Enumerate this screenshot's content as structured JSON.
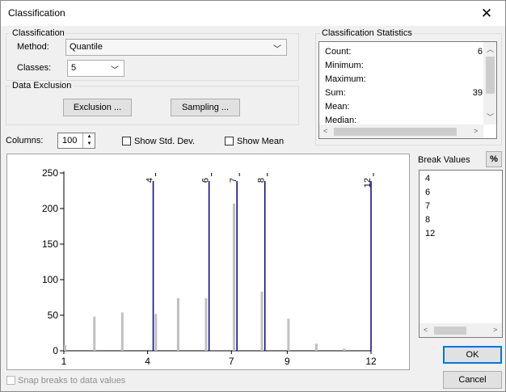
{
  "window": {
    "title": "Classification"
  },
  "classification": {
    "legend": "Classification",
    "method_label": "Method:",
    "method_value": "Quantile",
    "classes_label": "Classes:",
    "classes_value": "5"
  },
  "exclusion": {
    "legend": "Data Exclusion",
    "exclusion_button": "Exclusion ...",
    "sampling_button": "Sampling ..."
  },
  "stats": {
    "legend": "Classification Statistics",
    "rows": [
      {
        "label": "Count:",
        "value": "6"
      },
      {
        "label": "Minimum:",
        "value": ""
      },
      {
        "label": "Maximum:",
        "value": ""
      },
      {
        "label": "Sum:",
        "value": "39"
      },
      {
        "label": "Mean:",
        "value": ""
      },
      {
        "label": "Median:",
        "value": ""
      }
    ]
  },
  "options": {
    "columns_label": "Columns:",
    "columns_value": "100",
    "show_std_dev": "Show Std. Dev.",
    "show_mean": "Show Mean",
    "snap_breaks": "Snap breaks to data values"
  },
  "break_values": {
    "label": "Break Values",
    "percent_button": "%",
    "items": [
      "4",
      "6",
      "7",
      "8",
      "12"
    ]
  },
  "buttons": {
    "ok": "OK",
    "cancel": "Cancel"
  },
  "colors": {
    "histogram": "#c0c0c0",
    "break_line": "#00008b"
  },
  "chart_data": {
    "type": "bar",
    "xlim": [
      1,
      12
    ],
    "ylim": [
      0,
      250
    ],
    "x_ticks": [
      "1",
      "4",
      "7",
      "9",
      "12"
    ],
    "y_ticks": [
      "0",
      "50",
      "100",
      "150",
      "200",
      "250"
    ],
    "bins": [
      {
        "x": 1.0,
        "y": 8
      },
      {
        "x": 2.05,
        "y": 48
      },
      {
        "x": 3.05,
        "y": 54
      },
      {
        "x": 4.25,
        "y": 52
      },
      {
        "x": 5.05,
        "y": 74
      },
      {
        "x": 6.05,
        "y": 74
      },
      {
        "x": 7.05,
        "y": 207
      },
      {
        "x": 8.05,
        "y": 83
      },
      {
        "x": 9.0,
        "y": 45
      },
      {
        "x": 10.0,
        "y": 10
      },
      {
        "x": 11.0,
        "y": 3
      }
    ],
    "breaks": [
      {
        "x": 4.2,
        "label": "4"
      },
      {
        "x": 6.2,
        "label": "6"
      },
      {
        "x": 7.2,
        "label": "7"
      },
      {
        "x": 8.2,
        "label": "8"
      },
      {
        "x": 12.0,
        "label": "12"
      }
    ]
  }
}
